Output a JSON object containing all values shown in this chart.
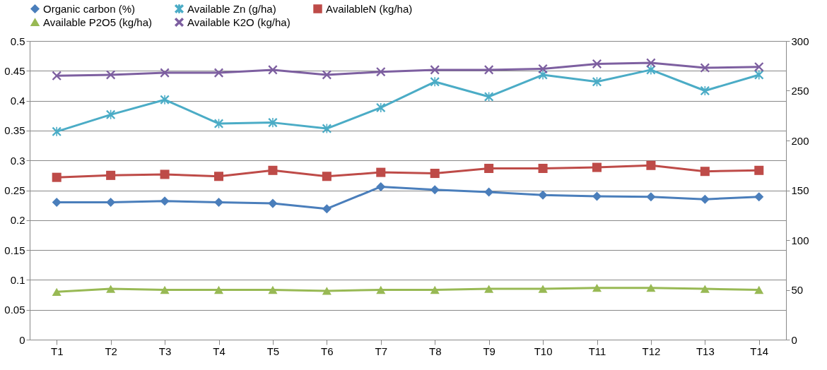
{
  "chart_data": {
    "type": "line",
    "categories": [
      "T1",
      "T2",
      "T3",
      "T4",
      "T5",
      "T6",
      "T7",
      "T8",
      "T9",
      "T10",
      "T11",
      "T12",
      "T13",
      "T14"
    ],
    "series": [
      {
        "name": "Organic carbon (%)",
        "color": "#4a7ebb",
        "marker": "diamond",
        "values": [
          0.23,
          0.23,
          0.232,
          0.23,
          0.228,
          0.219,
          0.256,
          0.251,
          0.247,
          0.242,
          0.24,
          0.239,
          0.235,
          0.239
        ]
      },
      {
        "name": "Available Zn (g/ha)",
        "color": "#4bacc6",
        "marker": "star",
        "axis": "y2",
        "values": [
          209,
          226,
          241,
          217,
          218,
          212,
          233,
          259,
          244,
          266,
          259,
          271,
          250,
          266
        ]
      },
      {
        "name": "AvailableN (kg/ha)",
        "color": "#be4b48",
        "marker": "square",
        "axis": "y2",
        "values": [
          163,
          165,
          166,
          164,
          170,
          164,
          168,
          167,
          172,
          172,
          173,
          175,
          169,
          170
        ]
      },
      {
        "name": "Available P2O5 (kg/ha)",
        "color": "#98b954",
        "marker": "triangle",
        "axis": "y2",
        "values": [
          48,
          51,
          50,
          50,
          50,
          49,
          50,
          50,
          51,
          51,
          52,
          52,
          51,
          50
        ]
      },
      {
        "name": "Available K2O (kg/ha)",
        "color": "#7d5fa0",
        "marker": "cross",
        "axis": "y2",
        "values": [
          265,
          266,
          268,
          268,
          271,
          266,
          269,
          271,
          271,
          272,
          277,
          278,
          273,
          274
        ]
      }
    ],
    "ylim": [
      0,
      0.5
    ],
    "yticks": [
      0,
      0.05,
      0.1,
      0.15,
      0.2,
      0.25,
      0.3,
      0.35,
      0.4,
      0.45,
      0.5
    ],
    "y2lim": [
      0,
      300
    ],
    "y2ticks": [
      0,
      50,
      100,
      150,
      200,
      250,
      300
    ],
    "grid": "y",
    "legend": "top",
    "line_style": "solid"
  }
}
